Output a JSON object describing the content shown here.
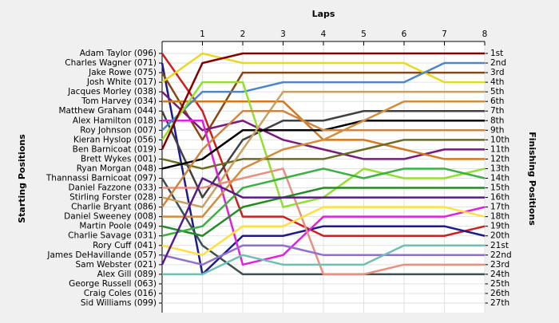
{
  "chart_data": {
    "type": "lap",
    "title": "Laps",
    "y_label": "Starting Positions",
    "y2_label": "Finishing Positions",
    "x": [
      0,
      1,
      2,
      3,
      4,
      5,
      6,
      7,
      8
    ],
    "xlim": [
      0,
      8
    ],
    "xticks": [
      1,
      2,
      3,
      4,
      5,
      6,
      7,
      8
    ],
    "ylim": [
      1,
      27
    ],
    "grid": true,
    "categories": [
      "Adam Taylor (096)",
      "Charles Wagner (071)",
      "Jake Rowe (075)",
      "Josh White (017)",
      "Jacques Morley (038)",
      "Tom Harvey (034)",
      "Matthew Graham (044)",
      "Alex Hamilton (018)",
      "Roy Johnson (007)",
      "Kieran Hyslop (056)",
      "Ben Barnicoat (019)",
      "Brett Wykes (001)",
      "Ryan Morgan (048)",
      "Thannassi Barnicoat (097)",
      "Daniel Fazzone (033)",
      "Stirling Forster (028)",
      "Charlie Bryant (086)",
      "Daniel Sweeney (008)",
      "Martin Poole (049)",
      "Charlie Savage (031)",
      "Rory Cuff (041)",
      "James DeHavillande (057)",
      "Sam Webster (021)",
      "Alex Gill (089)",
      "George Russell (063)",
      "Craig Coles (016)",
      "Sid Williams (099)"
    ],
    "y2categories": [
      "1st",
      "2nd",
      "3rd",
      "4th",
      "5th",
      "6th",
      "7th",
      "8th",
      "9th",
      "10th",
      "11th",
      "12th",
      "13th",
      "14th",
      "15th",
      "16th",
      "17th",
      "18th",
      "19th",
      "20th",
      "21st",
      "22nd",
      "23rd",
      "24th",
      "25th",
      "26th",
      "27th"
    ],
    "series": [
      {
        "color": "#cc2020",
        "values": [
          1,
          7,
          18,
          18,
          20,
          20,
          20,
          20,
          19
        ]
      },
      {
        "color": "#1c1c8a",
        "values": [
          2,
          24,
          20,
          20,
          19,
          19,
          19,
          19,
          20
        ]
      },
      {
        "color": "#8b4513",
        "values": [
          3,
          10,
          3,
          3,
          3,
          3,
          3,
          3,
          3
        ]
      },
      {
        "color": "#e8d820",
        "values": [
          4,
          1,
          2,
          2,
          2,
          2,
          2,
          4,
          4
        ]
      },
      {
        "color": "#7a1a7a",
        "values": [
          5,
          9,
          8,
          10,
          11,
          12,
          12,
          11,
          11
        ]
      },
      {
        "color": "#d2781e",
        "values": [
          6,
          6,
          6,
          6,
          10,
          10,
          11,
          12,
          12
        ]
      },
      {
        "color": "#404040",
        "values": [
          7,
          16,
          10,
          8,
          8,
          7,
          7,
          7,
          7
        ]
      },
      {
        "color": "#e020e0",
        "values": [
          8,
          8,
          23,
          22,
          18,
          18,
          18,
          18,
          17
        ]
      },
      {
        "color": "#4a86c8",
        "values": [
          9,
          5,
          5,
          4,
          4,
          4,
          4,
          2,
          2
        ]
      },
      {
        "color": "#90e030",
        "values": [
          10,
          4,
          4,
          17,
          16,
          13,
          14,
          14,
          13
        ]
      },
      {
        "color": "#800000",
        "values": [
          11,
          2,
          1,
          1,
          1,
          1,
          1,
          1,
          1
        ]
      },
      {
        "color": "#6b6b23",
        "values": [
          12,
          13,
          12,
          12,
          12,
          11,
          10,
          10,
          10
        ]
      },
      {
        "color": "#000000",
        "values": [
          13,
          12,
          9,
          9,
          9,
          8,
          8,
          8,
          8
        ]
      },
      {
        "color": "#3c5050",
        "values": [
          14,
          21,
          24,
          24,
          24,
          24,
          24,
          24,
          24
        ]
      },
      {
        "color": "#e89080",
        "values": [
          15,
          15,
          14,
          13,
          24,
          24,
          23,
          23,
          23
        ]
      },
      {
        "color": "#c8a060",
        "values": [
          16,
          17,
          11,
          5,
          5,
          5,
          5,
          5,
          5
        ]
      },
      {
        "color": "#cd853f",
        "values": [
          17,
          11,
          7,
          7,
          9,
          9,
          9,
          9,
          9
        ]
      },
      {
        "color": "#d28c3c",
        "values": [
          18,
          18,
          13,
          11,
          10,
          8,
          6,
          6,
          6
        ]
      },
      {
        "color": "#228b22",
        "values": [
          19,
          20,
          17,
          16,
          15,
          15,
          15,
          15,
          15
        ]
      },
      {
        "color": "#3cb043",
        "values": [
          20,
          19,
          15,
          14,
          13,
          14,
          13,
          13,
          14
        ]
      },
      {
        "color": "#ffe040",
        "values": [
          21,
          22,
          19,
          19,
          17,
          17,
          17,
          17,
          18
        ]
      },
      {
        "color": "#9070c8",
        "values": [
          22,
          23,
          21,
          21,
          22,
          22,
          22,
          22,
          22
        ]
      },
      {
        "color": "#5a1a8a",
        "values": [
          23,
          14,
          16,
          16,
          16,
          16,
          16,
          16,
          16
        ]
      },
      {
        "color": "#70c0b0",
        "values": [
          24,
          24,
          22,
          23,
          23,
          23,
          21,
          21,
          21
        ]
      }
    ]
  }
}
